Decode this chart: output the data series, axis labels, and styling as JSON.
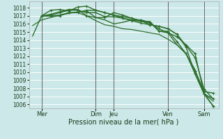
{
  "bg_color": "#cce8e8",
  "grid_color": "#ffffff",
  "line_color": "#2d6e2d",
  "xlabel": "Pression niveau de la mer( hPa )",
  "ylim": [
    1005.5,
    1018.8
  ],
  "yticks": [
    1006,
    1007,
    1008,
    1009,
    1010,
    1011,
    1012,
    1013,
    1014,
    1015,
    1016,
    1017,
    1018
  ],
  "xlim": [
    -0.2,
    10.3
  ],
  "xtick_positions": [
    0.5,
    3.5,
    4.5,
    7.5,
    9.5
  ],
  "xtick_labels": [
    "Mer",
    "Dim",
    "Jeu",
    "Ven",
    "Sam"
  ],
  "vlines": [
    0.5,
    3.5,
    4.5,
    7.5,
    9.5
  ],
  "lines": [
    {
      "x": [
        0.0,
        0.5,
        1.0,
        1.5,
        2.0,
        2.5,
        3.0,
        3.5,
        4.0,
        4.5,
        5.0,
        5.5,
        6.0,
        6.5,
        7.0,
        7.5,
        8.0,
        8.5,
        9.0,
        9.5,
        10.0
      ],
      "y": [
        1014.5,
        1017.0,
        1017.0,
        1017.1,
        1017.3,
        1017.5,
        1017.6,
        1016.8,
        1016.5,
        1016.0,
        1016.2,
        1016.5,
        1016.3,
        1016.3,
        1015.1,
        1014.9,
        1013.4,
        1012.3,
        1009.8,
        1007.3,
        1006.7
      ],
      "marker": false,
      "lw": 1.0
    },
    {
      "x": [
        0.0,
        0.5,
        1.0,
        1.5,
        2.0,
        2.5,
        3.0,
        3.5,
        4.0,
        4.5,
        5.0,
        5.5,
        6.0,
        6.5,
        7.0,
        7.5,
        8.0,
        8.5,
        9.0,
        9.5,
        10.0
      ],
      "y": [
        1015.8,
        1016.5,
        1016.8,
        1017.1,
        1017.4,
        1017.4,
        1017.0,
        1016.4,
        1015.9,
        1015.7,
        1015.4,
        1015.3,
        1015.1,
        1014.9,
        1014.7,
        1014.1,
        1013.4,
        1012.3,
        1010.3,
        1007.3,
        1006.4
      ],
      "marker": false,
      "lw": 0.9
    },
    {
      "x": [
        0.5,
        1.0,
        1.5,
        2.0,
        2.5,
        3.0,
        3.5,
        4.0,
        4.5,
        5.0,
        5.5,
        6.0,
        6.5,
        7.0,
        7.5,
        8.0,
        8.5,
        9.0,
        9.5,
        10.0
      ],
      "y": [
        1017.0,
        1017.7,
        1017.8,
        1017.6,
        1018.1,
        1018.2,
        1017.7,
        1017.4,
        1017.1,
        1016.9,
        1016.7,
        1016.4,
        1016.1,
        1015.4,
        1014.9,
        1014.4,
        1013.4,
        1012.3,
        1007.3,
        1005.8
      ],
      "marker": true,
      "lw": 1.0
    },
    {
      "x": [
        0.5,
        1.0,
        1.5,
        2.0,
        2.5,
        3.0,
        3.5,
        4.0,
        4.5,
        5.0,
        5.5,
        6.0,
        6.5,
        7.0,
        7.5,
        8.0,
        8.5,
        9.0,
        9.5,
        10.0
      ],
      "y": [
        1017.0,
        1017.2,
        1017.5,
        1017.8,
        1017.8,
        1017.0,
        1016.8,
        1016.8,
        1017.4,
        1017.1,
        1016.7,
        1016.4,
        1015.9,
        1015.7,
        1015.4,
        1014.7,
        1013.3,
        1011.8,
        1007.9,
        1006.7
      ],
      "marker": true,
      "lw": 1.0
    },
    {
      "x": [
        0.5,
        1.0,
        1.5,
        2.0,
        2.5,
        3.0,
        3.5,
        4.0,
        4.5,
        5.0,
        5.5,
        6.0,
        6.5,
        7.0,
        7.5,
        8.0,
        8.5,
        9.0,
        9.5,
        10.0
      ],
      "y": [
        1017.0,
        1017.1,
        1017.4,
        1017.7,
        1017.7,
        1017.4,
        1017.4,
        1016.9,
        1016.9,
        1016.7,
        1016.4,
        1016.1,
        1015.9,
        1015.7,
        1015.4,
        1014.7,
        1013.1,
        1009.8,
        1007.3,
        1005.8
      ],
      "marker": true,
      "lw": 1.0
    },
    {
      "x": [
        0.5,
        1.0,
        1.5,
        2.0,
        2.5,
        3.0,
        3.5,
        4.0,
        4.5,
        5.0,
        5.5,
        6.0,
        6.5,
        7.0,
        7.5,
        8.0,
        8.5,
        9.0,
        9.5,
        10.0
      ],
      "y": [
        1017.0,
        1017.0,
        1017.0,
        1017.4,
        1017.4,
        1017.7,
        1017.7,
        1017.4,
        1017.1,
        1016.7,
        1016.5,
        1016.5,
        1016.2,
        1015.1,
        1015.1,
        1013.8,
        1012.3,
        1010.2,
        1007.6,
        1007.4
      ],
      "marker": true,
      "lw": 1.0
    }
  ]
}
